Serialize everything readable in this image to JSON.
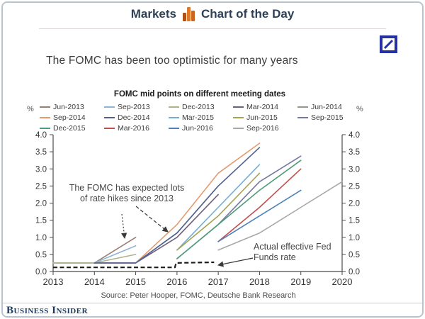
{
  "header": {
    "brand": "Markets",
    "title": "Chart of the Day"
  },
  "page_title": "The FOMC has been too optimistic for many years",
  "logo": {
    "name": "Deutsche Bank",
    "color": "#2531a3"
  },
  "chart_data": {
    "type": "line",
    "title": "FOMC mid points on different meeting dates",
    "y_axis_label_left": "%",
    "y_axis_label_right": "%",
    "xlim": [
      2013,
      2020
    ],
    "ylim": [
      0,
      4
    ],
    "y_tick_step": 0.5,
    "x_ticks": [
      2013,
      2014,
      2015,
      2016,
      2017,
      2018,
      2019,
      2020
    ],
    "grid": false,
    "legend_position": "top",
    "series": [
      {
        "name": "Jun-2013",
        "color": "#9b7f74",
        "points": [
          [
            2013,
            0.25
          ],
          [
            2014,
            0.25
          ],
          [
            2015,
            1.0
          ]
        ]
      },
      {
        "name": "Sep-2013",
        "color": "#8fb4d6",
        "points": [
          [
            2013,
            0.25
          ],
          [
            2014,
            0.25
          ],
          [
            2015,
            0.75
          ]
        ]
      },
      {
        "name": "Dec-2013",
        "color": "#adb38d",
        "points": [
          [
            2013,
            0.25
          ],
          [
            2014,
            0.25
          ],
          [
            2015,
            0.5
          ]
        ]
      },
      {
        "name": "Mar-2014",
        "color": "#6e5f7d",
        "points": [
          [
            2014,
            0.25
          ],
          [
            2015,
            0.25
          ],
          [
            2016,
            1.0
          ],
          [
            2017,
            2.25
          ]
        ]
      },
      {
        "name": "Jun-2014",
        "color": "#90998b",
        "points": [
          [
            2014,
            0.25
          ],
          [
            2015,
            0.25
          ],
          [
            2016,
            1.125
          ],
          [
            2017,
            2.5
          ]
        ]
      },
      {
        "name": "Sep-2014",
        "color": "#e39a6f",
        "points": [
          [
            2014,
            0.25
          ],
          [
            2015,
            0.25
          ],
          [
            2016,
            1.375
          ],
          [
            2017,
            2.875
          ],
          [
            2018,
            3.75
          ]
        ]
      },
      {
        "name": "Dec-2014",
        "color": "#50618f",
        "points": [
          [
            2014,
            0.25
          ],
          [
            2015,
            0.25
          ],
          [
            2016,
            1.125
          ],
          [
            2017,
            2.5
          ],
          [
            2018,
            3.625
          ]
        ]
      },
      {
        "name": "Mar-2015",
        "color": "#72aed3",
        "points": [
          [
            2016,
            0.625
          ],
          [
            2017,
            1.875
          ],
          [
            2018,
            3.125
          ]
        ]
      },
      {
        "name": "Jun-2015",
        "color": "#a5a455",
        "points": [
          [
            2016,
            0.625
          ],
          [
            2017,
            1.625
          ],
          [
            2018,
            2.875
          ]
        ]
      },
      {
        "name": "Sep-2015",
        "color": "#75789f",
        "points": [
          [
            2016,
            0.375
          ],
          [
            2017,
            1.375
          ],
          [
            2018,
            2.625
          ],
          [
            2019,
            3.375
          ]
        ]
      },
      {
        "name": "Dec-2015",
        "color": "#4f9c79",
        "points": [
          [
            2016,
            0.375
          ],
          [
            2017,
            1.375
          ],
          [
            2018,
            2.375
          ],
          [
            2019,
            3.25
          ]
        ]
      },
      {
        "name": "Mar-2016",
        "color": "#c1504c",
        "points": [
          [
            2017,
            0.875
          ],
          [
            2018,
            1.875
          ],
          [
            2019,
            3.0
          ]
        ]
      },
      {
        "name": "Jun-2016",
        "color": "#4f81bd",
        "points": [
          [
            2017,
            0.875
          ],
          [
            2018,
            1.625
          ],
          [
            2019,
            2.375
          ]
        ]
      },
      {
        "name": "Sep-2016",
        "color": "#a8a8a8",
        "points": [
          [
            2017,
            0.625
          ],
          [
            2018,
            1.125
          ],
          [
            2019,
            1.875
          ],
          [
            2020,
            2.625
          ]
        ]
      }
    ],
    "actual_rate": {
      "name": "Actual effective Fed Funds rate",
      "color": "#1c1c1c",
      "dashed": true,
      "points": [
        [
          2013,
          0.12
        ],
        [
          2015.95,
          0.12
        ],
        [
          2015.98,
          0.25
        ],
        [
          2016.9,
          0.27
        ]
      ]
    },
    "annotations": {
      "hikes": {
        "line1": "The FOMC has expected lots",
        "line2": "of rate hikes since 2013"
      },
      "actual": {
        "line1": "Actual effective Fed",
        "line2": "Funds rate"
      }
    }
  },
  "source": "Source: Peter Hooper, FOMC, Deutsche Bank Research",
  "footer": {
    "brand": "Business Insider"
  }
}
